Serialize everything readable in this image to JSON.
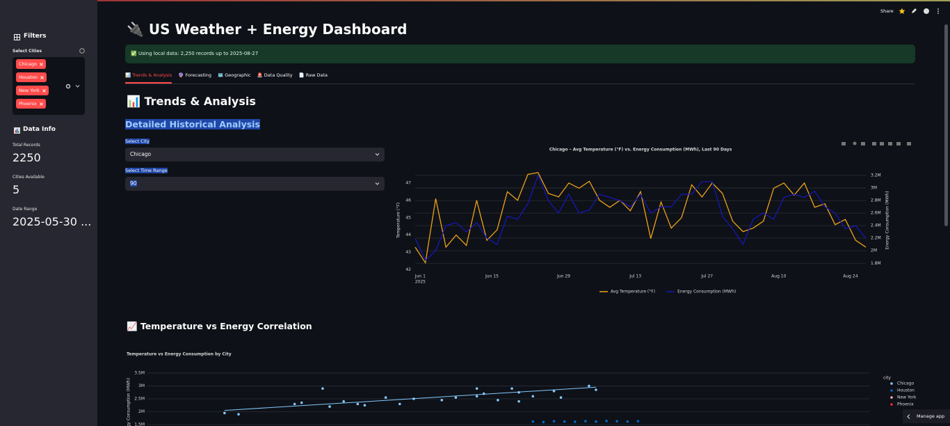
{
  "toolbar": {
    "share": "Share"
  },
  "sidebar": {
    "filters_title": "Filters",
    "select_cities_label": "Select Cities",
    "selected_cities": [
      "Chicago",
      "Houston",
      "New York",
      "Phoenix"
    ],
    "data_info_title": "Data Info",
    "metrics": [
      {
        "label": "Total Records",
        "value": 2250
      },
      {
        "label": "Cities Available",
        "value": 5
      },
      {
        "label": "Date Range",
        "value": "2025-05-30 ..."
      }
    ]
  },
  "header": {
    "title": "🔌 US Weather + Energy Dashboard",
    "status": "✅ Using local data: 2,250 records up to 2025-08-27"
  },
  "tabs": [
    "📊 Trends & Analysis",
    "🔮 Forecasting",
    "🗺️ Geographic",
    "🚨 Data Quality",
    "📄 Raw Data"
  ],
  "active_tab": 0,
  "section": {
    "title": "📊 Trends & Analysis",
    "subtitle": "Detailed Historical Analysis",
    "city_select": {
      "label": "Select City",
      "value": "Chicago"
    },
    "range_select": {
      "label": "Select Time Range",
      "value": "90"
    },
    "correlation_title": "📈 Temperature vs Energy Correlation"
  },
  "chart_data": [
    {
      "type": "line",
      "title": "Chicago – Avg Temperature (°F) vs. Energy Consumption (MWh), Last 90 Days",
      "x": [
        "2025-05-31",
        "2025-06-02",
        "2025-06-04",
        "2025-06-06",
        "2025-06-08",
        "2025-06-10",
        "2025-06-12",
        "2025-06-14",
        "2025-06-16",
        "2025-06-18",
        "2025-06-20",
        "2025-06-22",
        "2025-06-24",
        "2025-06-26",
        "2025-06-28",
        "2025-06-30",
        "2025-07-02",
        "2025-07-04",
        "2025-07-06",
        "2025-07-08",
        "2025-07-10",
        "2025-07-12",
        "2025-07-14",
        "2025-07-16",
        "2025-07-18",
        "2025-07-20",
        "2025-07-22",
        "2025-07-24",
        "2025-07-26",
        "2025-07-28",
        "2025-07-30",
        "2025-08-01",
        "2025-08-03",
        "2025-08-05",
        "2025-08-07",
        "2025-08-09",
        "2025-08-11",
        "2025-08-13",
        "2025-08-15",
        "2025-08-17",
        "2025-08-19",
        "2025-08-21",
        "2025-08-23",
        "2025-08-25",
        "2025-08-27"
      ],
      "xlim": [
        "2025-05-31",
        "2025-08-27"
      ],
      "xticks": [
        {
          "value": "2025-06-01",
          "label": "Jun 1"
        },
        {
          "value": "2025-06-15",
          "label": "Jun 15"
        },
        {
          "value": "2025-06-29",
          "label": "Jun 29"
        },
        {
          "value": "2025-07-13",
          "label": "Jul 13"
        },
        {
          "value": "2025-07-27",
          "label": "Jul 27"
        },
        {
          "value": "2025-08-10",
          "label": "Aug 10"
        },
        {
          "value": "2025-08-24",
          "label": "Aug 24"
        }
      ],
      "x_year_label": "2025",
      "ylabel": "Temperature (°F)",
      "y2label": "Energy Consumption (MWh)",
      "ylim": [
        41.9,
        47.8
      ],
      "yticks": [
        42,
        43,
        44,
        45,
        46,
        47
      ],
      "y2lim": [
        1670000,
        3300000
      ],
      "y2ticks": [
        {
          "value": 1800000,
          "label": "1.8M"
        },
        {
          "value": 2000000,
          "label": "2M"
        },
        {
          "value": 2200000,
          "label": "2.2M"
        },
        {
          "value": 2400000,
          "label": "2.4M"
        },
        {
          "value": 2600000,
          "label": "2.6M"
        },
        {
          "value": 2800000,
          "label": "2.8M"
        },
        {
          "value": 3000000,
          "label": "3M"
        },
        {
          "value": 3200000,
          "label": "3.2M"
        }
      ],
      "grid": true,
      "legend": "bottom",
      "series": [
        {
          "name": "Avg Temperature (°F)",
          "color": "#eea21a",
          "values": [
            43.3,
            42.4,
            46.1,
            43.3,
            44.0,
            43.4,
            46.0,
            43.7,
            44.3,
            46.5,
            46.0,
            47.5,
            47.6,
            46.4,
            46.2,
            47.0,
            46.7,
            47.1,
            46.0,
            45.6,
            46.0,
            45.4,
            46.5,
            43.8,
            45.9,
            44.4,
            45.0,
            46.9,
            46.2,
            47.0,
            46.4,
            44.8,
            44.2,
            44.4,
            44.8,
            46.7,
            47.0,
            46.3,
            47.0,
            45.6,
            45.8,
            44.6,
            44.9,
            43.7,
            43.3
          ]
        },
        {
          "name": "Energy Consumption (MWh)",
          "color": "#1717b8",
          "axis": "y2",
          "values": [
            2200000,
            1850000,
            2000000,
            2400000,
            2450000,
            2300000,
            2450000,
            2200000,
            2100000,
            2550000,
            2500000,
            2750000,
            3200000,
            2800000,
            2600000,
            2900000,
            2600000,
            2650000,
            2900000,
            2850000,
            2800000,
            2700000,
            2900000,
            2600000,
            2700000,
            2700000,
            2900000,
            2900000,
            3100000,
            3100000,
            2550000,
            2350000,
            2100000,
            2500000,
            2600000,
            2500000,
            2850000,
            2900000,
            2850000,
            2950000,
            2700000,
            2600000,
            2350000,
            2400000,
            2200000
          ]
        }
      ]
    },
    {
      "type": "scatter",
      "title": "Temperature vs Energy Consumption by City",
      "ylabel": "Energy Consumption (MWh)",
      "xlim": [
        41.2,
        51.5
      ],
      "ylim": [
        690000,
        3660000
      ],
      "yticks": [
        {
          "value": 1500000,
          "label": "1.5M"
        },
        {
          "value": 2000000,
          "label": "2M"
        },
        {
          "value": 2500000,
          "label": "2.5M"
        },
        {
          "value": 3000000,
          "label": "3M"
        },
        {
          "value": 3500000,
          "label": "3.5M"
        }
      ],
      "grid": true,
      "legend_title": "city",
      "series": [
        {
          "name": "Chicago",
          "color": "#83c9ff",
          "x": [
            42.3,
            42.5,
            43.3,
            43.4,
            43.7,
            43.8,
            44.0,
            44.2,
            44.3,
            44.6,
            44.8,
            45.0,
            45.4,
            45.6,
            45.9,
            45.9,
            46.0,
            46.2,
            46.4,
            46.5,
            46.5,
            46.7,
            47.0,
            47.1,
            47.5,
            47.6
          ],
          "values": [
            1950000,
            1900000,
            2300000,
            2350000,
            2900000,
            2200000,
            2400000,
            2300000,
            2250000,
            2550000,
            2300000,
            2500000,
            2450000,
            2550000,
            2600000,
            2900000,
            2700000,
            2450000,
            2900000,
            2750000,
            2400000,
            2600000,
            2800000,
            2550000,
            3000000,
            2850000
          ],
          "trend": {
            "x": [
              42.3,
              47.6
            ],
            "values": [
              2050000,
              2950000
            ]
          }
        },
        {
          "name": "Houston",
          "color": "#0068c9",
          "x": [
            46.7,
            46.85,
            47.0,
            47.15,
            47.3,
            47.45,
            47.6,
            47.75,
            47.9,
            48.05,
            48.2
          ],
          "values": [
            1620000,
            1600000,
            1630000,
            1620000,
            1610000,
            1630000,
            1620000,
            1640000,
            1630000,
            1620000,
            1630000
          ]
        },
        {
          "name": "New York",
          "color": "#ffabab",
          "x": [],
          "values": []
        },
        {
          "name": "Phoenix",
          "color": "#ff2b2b",
          "x": [],
          "values": []
        }
      ]
    }
  ],
  "footer": {
    "manage_app": "Manage app"
  }
}
